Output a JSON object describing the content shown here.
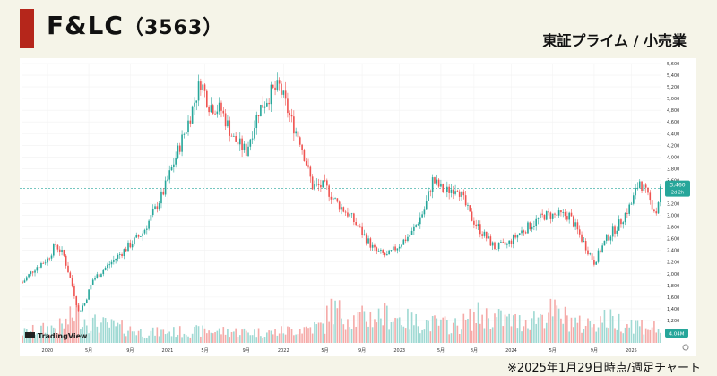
{
  "header": {
    "title": "F&LC",
    "code": "（3563）",
    "market": "東証プライム / 小売業",
    "accent_color": "#b5261b"
  },
  "footnote": "※2025年1月29日時点/週足チャート",
  "chart_data": {
    "type": "candlestick",
    "frequency": "weekly",
    "up_color": "#26a69a",
    "down_color": "#ef5350",
    "watermark": "TradingView",
    "last_price_label": "3,460",
    "last_price_sublabel": "2d 2h",
    "volume_label": "4.04M",
    "ylim": [
      1000,
      5600
    ],
    "y_ticks": [
      5600,
      5400,
      5200,
      5000,
      4800,
      4600,
      4400,
      4200,
      4000,
      3800,
      3600,
      3400,
      3200,
      3000,
      2800,
      2600,
      2400,
      2200,
      2000,
      1800,
      1600,
      1400,
      1200
    ],
    "y_tick_labels": [
      "5,600",
      "5,400",
      "5,200",
      "5,000",
      "4,800",
      "4,600",
      "4,400",
      "4,200",
      "4,000",
      "3,800",
      "3,600",
      "3,400",
      "3,200",
      "3,000",
      "2,800",
      "2,600",
      "2,400",
      "2,200",
      "2,000",
      "1,800",
      "1,600",
      "1,400",
      "1,200"
    ],
    "x_tick_labels": [
      "2020",
      "5月",
      "9月",
      "2021",
      "5月",
      "9月",
      "2022",
      "5月",
      "9月",
      "2023",
      "5月",
      "8月",
      "2024",
      "5月",
      "9月",
      "2025"
    ],
    "x_tick_index": [
      12,
      32,
      52,
      70,
      88,
      108,
      126,
      146,
      164,
      182,
      202,
      218,
      236,
      256,
      276,
      294
    ],
    "weeks_total": 300,
    "price_anchors": [
      [
        0,
        1850
      ],
      [
        6,
        2100
      ],
      [
        12,
        2250
      ],
      [
        16,
        2500
      ],
      [
        20,
        2300
      ],
      [
        24,
        1800
      ],
      [
        27,
        1350
      ],
      [
        30,
        1500
      ],
      [
        34,
        1900
      ],
      [
        40,
        2100
      ],
      [
        46,
        2300
      ],
      [
        52,
        2500
      ],
      [
        58,
        2700
      ],
      [
        64,
        3100
      ],
      [
        68,
        3400
      ],
      [
        74,
        4000
      ],
      [
        80,
        4600
      ],
      [
        86,
        5300
      ],
      [
        90,
        4900
      ],
      [
        96,
        4800
      ],
      [
        102,
        4300
      ],
      [
        108,
        4100
      ],
      [
        114,
        4800
      ],
      [
        120,
        5100
      ],
      [
        124,
        5200
      ],
      [
        130,
        4600
      ],
      [
        134,
        4300
      ],
      [
        140,
        3500
      ],
      [
        146,
        3500
      ],
      [
        152,
        3200
      ],
      [
        158,
        3000
      ],
      [
        164,
        2700
      ],
      [
        170,
        2400
      ],
      [
        176,
        2300
      ],
      [
        182,
        2500
      ],
      [
        188,
        2700
      ],
      [
        194,
        3100
      ],
      [
        198,
        3600
      ],
      [
        204,
        3400
      ],
      [
        210,
        3500
      ],
      [
        216,
        3000
      ],
      [
        222,
        2700
      ],
      [
        228,
        2450
      ],
      [
        234,
        2500
      ],
      [
        240,
        2700
      ],
      [
        246,
        2850
      ],
      [
        252,
        3000
      ],
      [
        258,
        3000
      ],
      [
        264,
        3000
      ],
      [
        270,
        2600
      ],
      [
        276,
        2200
      ],
      [
        282,
        2600
      ],
      [
        288,
        2850
      ],
      [
        294,
        3200
      ],
      [
        298,
        3600
      ],
      [
        302,
        3300
      ],
      [
        306,
        3050
      ],
      [
        308,
        3460
      ]
    ],
    "volume_anchors": [
      [
        0,
        0.3
      ],
      [
        20,
        0.5
      ],
      [
        26,
        0.9
      ],
      [
        32,
        0.6
      ],
      [
        60,
        0.3
      ],
      [
        90,
        0.35
      ],
      [
        120,
        0.3
      ],
      [
        146,
        0.5
      ],
      [
        148,
        1.0
      ],
      [
        160,
        0.7
      ],
      [
        176,
        0.8
      ],
      [
        190,
        0.6
      ],
      [
        210,
        0.5
      ],
      [
        220,
        0.8
      ],
      [
        240,
        0.6
      ],
      [
        256,
        0.9
      ],
      [
        270,
        0.5
      ],
      [
        280,
        0.7
      ],
      [
        300,
        0.5
      ],
      [
        308,
        0.4
      ]
    ]
  }
}
